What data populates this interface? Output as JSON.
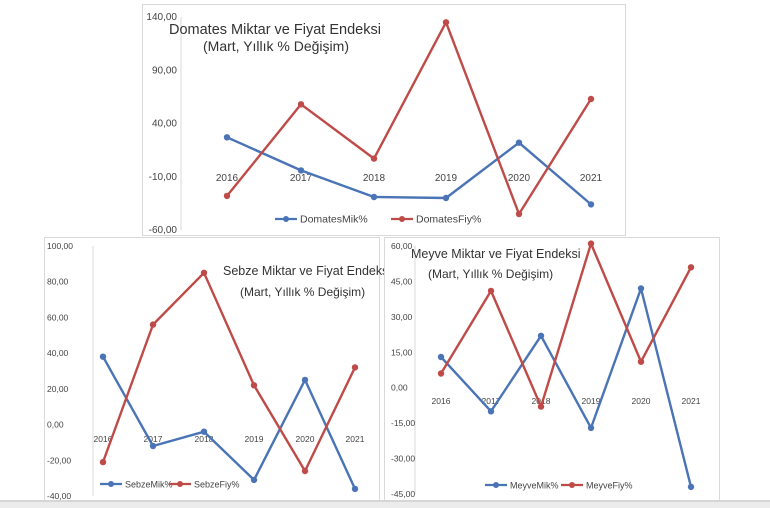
{
  "chart_data": [
    {
      "type": "line",
      "title": "Domates Miktar ve Fiyat Endeksi",
      "subtitle": "(Mart, Yıllık % Değişim)",
      "categories": [
        "2016",
        "2017",
        "2018",
        "2019",
        "2020",
        "2021"
      ],
      "ylim": [
        -60,
        140
      ],
      "yticks": [
        "140,00",
        "90,00",
        "40,00",
        "-10,00",
        "-60,00"
      ],
      "tick_values": [
        140,
        90,
        40,
        -10,
        -60
      ],
      "gridlines": false,
      "legend": "bottom",
      "series": [
        {
          "name": "DomatesMik%",
          "color": "#4a74b5",
          "values": [
            27,
            -4,
            -29,
            -30,
            22,
            -36
          ]
        },
        {
          "name": "DomatesFiy%",
          "color": "#be4b48",
          "values": [
            -28,
            58,
            7,
            135,
            -45,
            63
          ]
        }
      ]
    },
    {
      "type": "line",
      "title": "Sebze Miktar ve Fiyat Endeksi",
      "subtitle": "(Mart, Yıllık % Değişim)",
      "categories": [
        "2016",
        "2017",
        "2018",
        "2019",
        "2020",
        "2021"
      ],
      "ylim": [
        -40,
        100
      ],
      "yticks": [
        "100,00",
        "80,00",
        "60,00",
        "40,00",
        "20,00",
        "0,00",
        "-20,00",
        "-40,00"
      ],
      "tick_values": [
        100,
        80,
        60,
        40,
        20,
        0,
        -20,
        -40
      ],
      "gridlines": false,
      "legend": "bottom",
      "series": [
        {
          "name": "SebzeMik%",
          "color": "#4a74b5",
          "values": [
            38,
            -12,
            -4,
            -31,
            25,
            -36
          ]
        },
        {
          "name": "SebzeFiy%",
          "color": "#be4b48",
          "values": [
            -21,
            56,
            85,
            22,
            -26,
            32
          ]
        }
      ]
    },
    {
      "type": "line",
      "title": "Meyve Miktar ve Fiyat Endeksi",
      "subtitle": "(Mart, Yıllık % Değişim)",
      "categories": [
        "2016",
        "2017",
        "2018",
        "2019",
        "2020",
        "2021"
      ],
      "ylim": [
        -45,
        60
      ],
      "yticks": [
        "60,00",
        "45,00",
        "30,00",
        "15,00",
        "0,00",
        "-15,00",
        "-30,00",
        "-45,00"
      ],
      "tick_values": [
        60,
        45,
        30,
        15,
        0,
        -15,
        -30,
        -45
      ],
      "gridlines": false,
      "legend": "bottom",
      "series": [
        {
          "name": "MeyveMik%",
          "color": "#4a74b5",
          "values": [
            13,
            -10,
            22,
            -17,
            42,
            -42
          ]
        },
        {
          "name": "MeyveFiy%",
          "color": "#be4b48",
          "values": [
            6,
            41,
            -8,
            61,
            11,
            51
          ]
        }
      ]
    }
  ]
}
